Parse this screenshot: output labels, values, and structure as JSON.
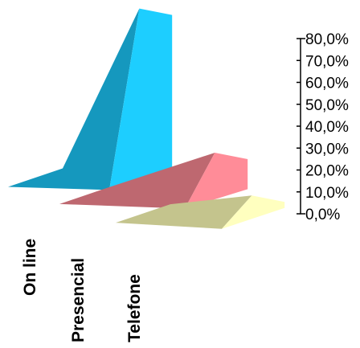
{
  "chart_data": {
    "type": "area",
    "subtype": "3d-ribbon",
    "title": "",
    "xlabel": "",
    "ylabel": "",
    "ylim": [
      0,
      80
    ],
    "y_ticks": [
      "80,0%",
      "70,0%",
      "60,0%",
      "50,0%",
      "40,0%",
      "30,0%",
      "20,0%",
      "10,0%",
      "0,0%"
    ],
    "series": [
      {
        "name": "On line",
        "values": [
          2,
          75
        ],
        "color": "#19B3DF"
      },
      {
        "name": "Presencial",
        "values": [
          3,
          18
        ],
        "color": "#E07A84"
      },
      {
        "name": "Telefone",
        "values": [
          4,
          8
        ],
        "color": "#E6E6A6"
      }
    ],
    "grid": false,
    "legend": "none"
  }
}
